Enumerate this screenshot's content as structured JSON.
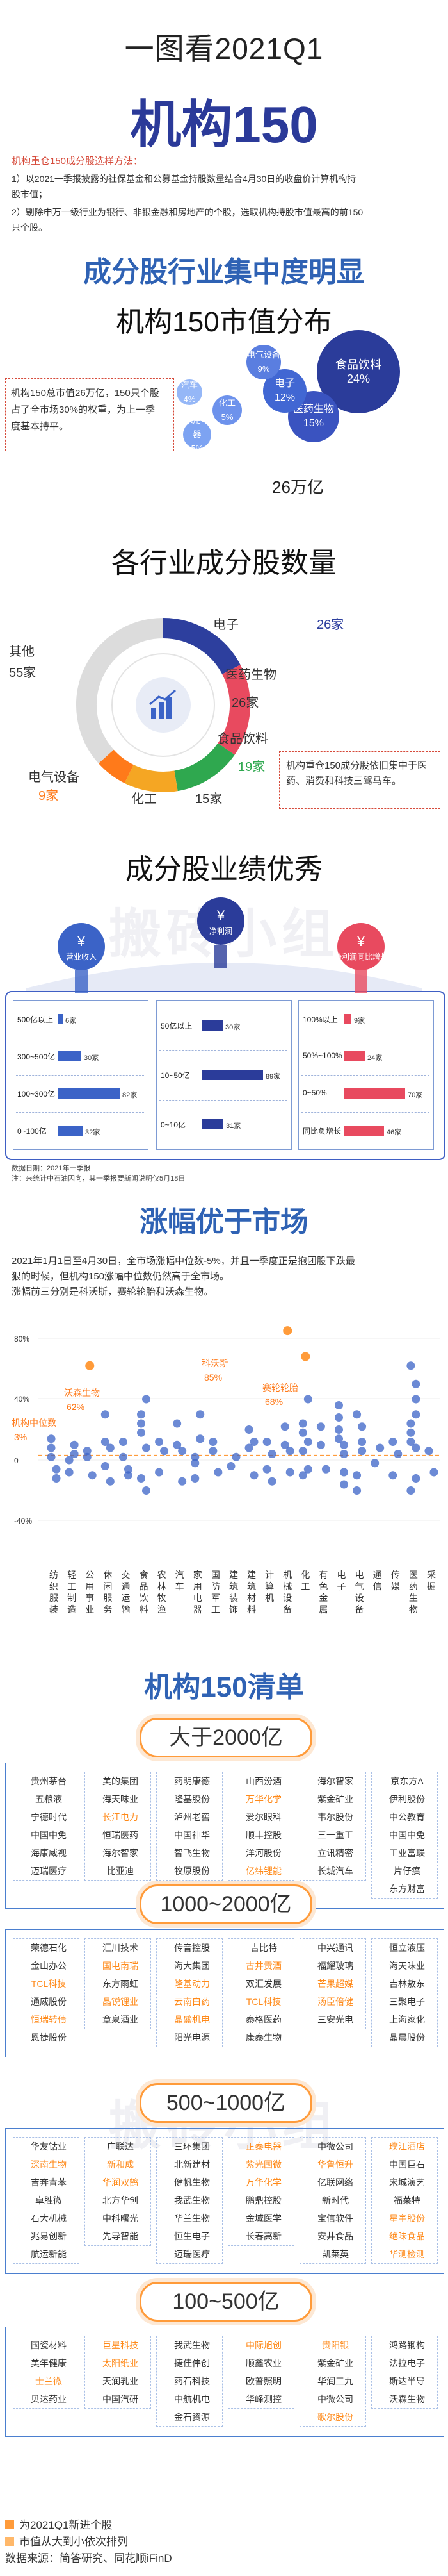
{
  "header": {
    "line1": "一图看2021Q1",
    "line2": "机构150"
  },
  "notes": {
    "title": "机构重仓150成分股选样方法：",
    "line1": "1）以2021一季报披露的社保基金和公募基金持股数量结合4月30日的收盘价计算机构持",
    "line1b": "股市值；",
    "line2": "2）剔除申万一级行业为银行、非银金融和房地产的个股，选取机构持股市值最高的前150",
    "line2b": "只个股。"
  },
  "section1": {
    "heading": "成分股行业集中度明显",
    "sub": "机构150市值分布",
    "desc": "机构150总市值26万亿，150只个股占了全市场30%的权重，为上一季度基本持平。",
    "total": "26万亿",
    "bubbles": [
      {
        "name": "食品饮料",
        "pct": "24%",
        "color": "#2b3c9a"
      },
      {
        "name": "医药生物",
        "pct": "15%",
        "color": "#3a53c0"
      },
      {
        "name": "电子",
        "pct": "12%",
        "color": "#4167d3"
      },
      {
        "name": "电气设备",
        "pct": "9%",
        "color": "#5a7ee0"
      },
      {
        "name": "化工",
        "pct": "5%",
        "color": "#6d92ec"
      },
      {
        "name": "家用电器",
        "pct": "5%",
        "color": "#7da3f2"
      },
      {
        "name": "汽车",
        "pct": "4%",
        "color": "#95b7f7"
      }
    ]
  },
  "section2": {
    "sub": "各行业成分股数量",
    "donut": [
      {
        "name": "电子",
        "count": "26家",
        "value": 26,
        "color": "#2d3f9e"
      },
      {
        "name": "医药生物",
        "count": "26家",
        "value": 26,
        "color": "#e84a5f"
      },
      {
        "name": "食品饮料",
        "count": "19家",
        "value": 19,
        "color": "#2fa84f"
      },
      {
        "name": "化工",
        "count": "15家",
        "value": 15,
        "color": "#f5a623"
      },
      {
        "name": "电气设备",
        "count": "9家",
        "value": 9,
        "color": "#ff7a1a"
      },
      {
        "name": "其他",
        "count": "55家",
        "value": 55,
        "color": "#dcdcdc"
      }
    ],
    "note": "机构重仓150成分股依旧集中于医药、消费和科技三驾马车。"
  },
  "section3": {
    "sub": "成分股业绩优秀",
    "watermark": "搬砖小组",
    "icons": [
      {
        "label": "营业收入",
        "color": "#3b63c7"
      },
      {
        "label": "净利润",
        "color": "#2b3c9a"
      },
      {
        "label": "净利润同比增长",
        "color": "#e84a5f"
      }
    ],
    "cards": [
      {
        "color": "#3b63c7",
        "rows": [
          {
            "label": "500亿以上",
            "value": "6家",
            "frac": 0.07
          },
          {
            "label": "300~500亿",
            "value": "30家",
            "frac": 0.38
          },
          {
            "label": "100~300亿",
            "value": "82家",
            "frac": 1.0
          },
          {
            "label": "0~100亿",
            "value": "32家",
            "frac": 0.4
          }
        ]
      },
      {
        "color": "#2b3c9a",
        "rows": [
          {
            "label": "50亿以上",
            "value": "30家",
            "frac": 0.34
          },
          {
            "label": "10~50亿",
            "value": "89家",
            "frac": 1.0
          },
          {
            "label": "0~10亿",
            "value": "31家",
            "frac": 0.35
          }
        ]
      },
      {
        "color": "#e84a5f",
        "rows": [
          {
            "label": "100%以上",
            "value": "9家",
            "frac": 0.13
          },
          {
            "label": "50%~100%",
            "value": "24家",
            "frac": 0.34
          },
          {
            "label": "0~50%",
            "value": "70家",
            "frac": 1.0
          },
          {
            "label": "同比负增长",
            "value": "46家",
            "frac": 0.66
          }
        ]
      }
    ],
    "src1": "数据日期：2021年一季报",
    "src2": "注：来统计中石油因向，其一季报要新闻说明仅5月18日"
  },
  "section4": {
    "heading": "涨幅优于市场",
    "p1": "2021年1月1日至4月30日，全市场涨幅中位数-5%，并且一季度正是抱团股下跌最",
    "p2": "狠的时候，但机构150涨幅中位数仍然高于全市场。",
    "p3": "涨幅前三分别是科沃斯，赛轮轮胎和沃森生物。",
    "yticks": [
      "80%",
      "40%",
      "0",
      "-40%"
    ],
    "labels": [
      {
        "name": "科沃斯",
        "pct": "85%"
      },
      {
        "name": "赛轮轮胎",
        "pct": "68%"
      },
      {
        "name": "沃森生物",
        "pct": "62%"
      },
      {
        "name": "机构中位数",
        "pct": "3%"
      }
    ],
    "industries": [
      "纺织服装",
      "轻工制造",
      "公用事业",
      "休闲服务",
      "交通运输",
      "食品饮料",
      "农林牧渔",
      "汽车",
      "家用电器",
      "国防军工",
      "建筑装饰",
      "建筑材料",
      "计算机",
      "机械设备",
      "化工",
      "有色金属",
      "电子",
      "电气设备",
      "通信",
      "传媒",
      "医药生物",
      "采掘"
    ]
  },
  "section5": {
    "heading": "机构150清单",
    "watermark": "搬砖小组",
    "tiers": [
      {
        "title": "大于2000亿",
        "cols": [
          [
            "贵州茅台",
            "五粮液",
            "宁德时代",
            "中国中免",
            "海康威视",
            "迈瑞医疗"
          ],
          [
            "美的集团",
            "海天味业",
            "长江电力",
            "恒瑞医药",
            "海尔智家",
            "比亚迪"
          ],
          [
            "药明康德",
            "隆基股份",
            "泸州老窖",
            "中国神华",
            "智飞生物",
            "牧原股份"
          ],
          [
            "山西汾酒",
            "万华化学",
            "爱尔眼科",
            "顺丰控股",
            "洋河股份",
            "亿纬锂能"
          ],
          [
            "海尔智家",
            "紫金矿业",
            "韦尔股份",
            "三一重工",
            "立讯精密",
            "长城汽车"
          ],
          [
            "京东方A",
            "伊利股份",
            "中公教育",
            "中国中免",
            "工业富联",
            "片仔癀",
            "东方财富"
          ]
        ]
      },
      {
        "title": "1000~2000亿",
        "cols": [
          [
            "荣德石化",
            "金山办公",
            "TCL科技",
            "通威股份",
            "恒瑞转债",
            "恩捷股份"
          ],
          [
            "汇川技术",
            "国电南瑞",
            "东方雨虹",
            "晶锐锂业",
            "章泉酒业"
          ],
          [
            "传音控股",
            "海大集团",
            "隆基动力",
            "云南白药",
            "晶盛机电",
            "阳光电源"
          ],
          [
            "吉比特",
            "古井贡酒",
            "双汇发展",
            "TCL科技",
            "泰格医药",
            "康泰生物"
          ],
          [
            "中兴通讯",
            "福耀玻璃",
            "芒果超媒",
            "汤臣倍健",
            "三安光电"
          ],
          [
            "恒立液压",
            "海天味业",
            "吉林敖东",
            "三聚电子",
            "上海家化",
            "晶晨股份"
          ]
        ]
      },
      {
        "title": "500~1000亿",
        "cols": [
          [
            "华友钴业",
            "深南生物",
            "吉奔肯苯",
            "卓胜微",
            "石大机械",
            "兆易创新",
            "航运新能"
          ],
          [
            "广联达",
            "新和成",
            "华润双鹤",
            "北方华创",
            "中科曙光",
            "先导智能"
          ],
          [
            "三环集团",
            "北新建材",
            "健帆生物",
            "我武生物",
            "华兰生物",
            "恒生电子",
            "迈瑞医疗"
          ],
          [
            "正泰电器",
            "紫光国微",
            "万华化学",
            "鹏鼎控股",
            "金域医学",
            "长春高新"
          ],
          [
            "中微公司",
            "华鲁恒升",
            "亿联网络",
            "新时代",
            "宝信软件",
            "安井食品",
            "凯莱英"
          ],
          [
            "璞江酒店",
            "中国巨石",
            "宋城演艺",
            "福莱特",
            "星宇股份",
            "绝味食品",
            "华测检测"
          ]
        ]
      },
      {
        "title": "100~500亿",
        "cols": [
          [
            "国瓷材料",
            "美年健康",
            "士兰微",
            "贝达药业"
          ],
          [
            "巨星科技",
            "太阳纸业",
            "天润乳业",
            "中国汽研"
          ],
          [
            "我武生物",
            "捷佳伟创",
            "药石科技",
            "中航机电",
            "金石资源"
          ],
          [
            "中际旭创",
            "顺鑫农业",
            "欧普照明",
            "华峰测控"
          ],
          [
            "贵阳银",
            "紫金矿业",
            "华润三九",
            "中微公司",
            "歌尔股份"
          ],
          [
            "鸿路钢构",
            "法拉电子",
            "斯达半导",
            "沃森生物"
          ]
        ]
      }
    ],
    "legend1": "为2021Q1新进个股",
    "legend2": "市值从大到小依次排列",
    "source": "数据来源：简答研究、同花顺iFinD"
  }
}
